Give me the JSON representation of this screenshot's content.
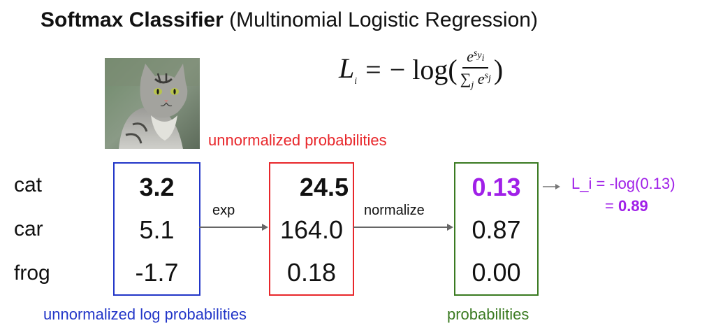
{
  "title": {
    "bold": "Softmax Classifier",
    "rest": "(Multinomial Logistic Regression)"
  },
  "formula": {
    "lhs": "L",
    "lhs_sub": "i",
    "eq": "=",
    "minus_log": "− log(",
    "num_base": "e",
    "num_exp": "s",
    "num_exp_sub": "y",
    "num_exp_subsub": "i",
    "den_sum": "∑",
    "den_sum_sub": "j",
    "den_base": "e",
    "den_exp": "s",
    "den_exp_sub": "j",
    "close": ")"
  },
  "classes": [
    "cat",
    "car",
    "frog"
  ],
  "scores": [
    "3.2",
    "5.1",
    "-1.7"
  ],
  "exp_values": [
    "24.5",
    "164.0",
    "0.18"
  ],
  "probabilities": [
    "0.13",
    "0.87",
    "0.00"
  ],
  "arrows": {
    "exp": "exp",
    "normalize": "normalize"
  },
  "captions": {
    "unnormalized_probabilities": "unnormalized probabilities",
    "unnormalized_log_probabilities": "unnormalized log probabilities",
    "probabilities": "probabilities"
  },
  "loss": {
    "line1": "L_i = -log(0.13)",
    "line2_prefix": "= ",
    "line2_value": "0.89"
  },
  "colors": {
    "blue_box": "#2236c8",
    "red_box": "#e8272b",
    "green_box": "#3a7a21",
    "highlight": "#a020e8"
  },
  "image": {
    "subject": "tabby-cat-photo"
  }
}
